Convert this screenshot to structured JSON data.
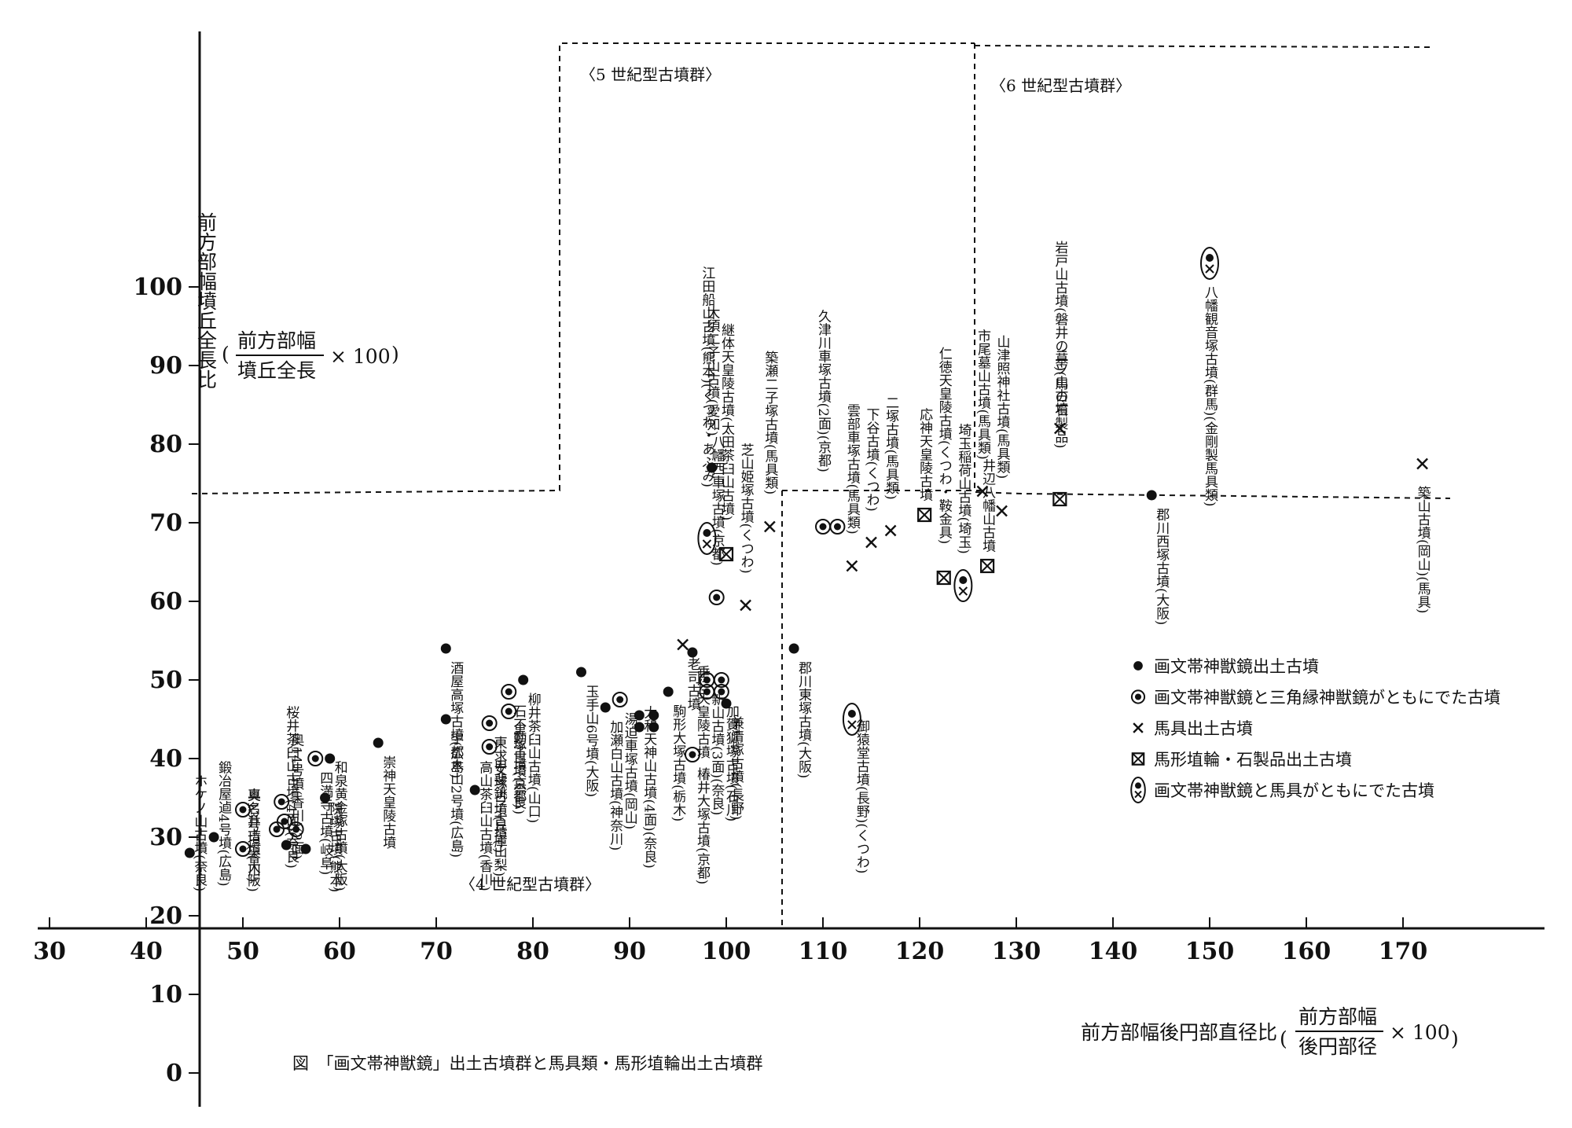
{
  "chart_data": {
    "type": "scatter",
    "title": "図　「画文帯神獣鏡」出土古墳群と馬具類・馬形埴輪出土古墳群",
    "ylabel": "前方部幅墳丘全長比",
    "ylabel_formula": {
      "numerator": "前方部幅",
      "denominator": "墳丘全長",
      "multiplier": "× 100"
    },
    "xlabel": "前方部幅後円部直径比",
    "xlabel_formula": {
      "numerator": "前方部幅",
      "denominator": "後円部径",
      "multiplier": "× 100"
    },
    "xlim": [
      30,
      170
    ],
    "ylim": [
      0,
      100
    ],
    "x_ticks": [
      30,
      40,
      50,
      60,
      70,
      80,
      90,
      100,
      110,
      120,
      130,
      140,
      150,
      160,
      170
    ],
    "y_ticks": [
      0,
      10,
      20,
      30,
      40,
      50,
      60,
      70,
      80,
      90,
      100
    ],
    "grid": false,
    "groups": [
      {
        "label": "〈4 世紀型古墳群〉"
      },
      {
        "label": "〈5 世紀型古墳群〉"
      },
      {
        "label": "〈6 世紀型古墳群〉"
      }
    ],
    "legend": [
      {
        "symbol": "dot",
        "label": "画文帯神獣鏡出土古墳"
      },
      {
        "symbol": "ringdot",
        "label": "画文帯神獣鏡と三角縁神獣鏡がともにでた古墳"
      },
      {
        "symbol": "x",
        "label": "馬具出土古墳"
      },
      {
        "symbol": "boxx",
        "label": "馬形埴輪・石製品出土古墳"
      },
      {
        "symbol": "both",
        "label": "画文帯神獣鏡と馬具がともにでた古墳"
      }
    ],
    "points": [
      {
        "x": 44.5,
        "y": 28,
        "symbol": "dot",
        "label": "ホケノ山古墳(奈良)"
      },
      {
        "x": 47,
        "y": 30,
        "symbol": "dot",
        "label": "鍛冶屋逌4号墳(広島)"
      },
      {
        "x": 50,
        "y": 33.5,
        "symbol": "ringdot",
        "label": "真名井古墳(大阪)"
      },
      {
        "x": 50,
        "y": 28.5,
        "symbol": "ringdot",
        "label": "奥13号墳(香川)"
      },
      {
        "x": 54,
        "y": 34.5,
        "symbol": "ringdot",
        "label": "桜井茶臼山古墳(4面)(奈良)"
      },
      {
        "x": 54.3,
        "y": 32,
        "symbol": "ringdot",
        "label": ""
      },
      {
        "x": 53.5,
        "y": 31,
        "symbol": "ringdot",
        "label": ""
      },
      {
        "x": 54.5,
        "y": 29,
        "symbol": "dot",
        "label": "奥14号墳(香川)(2面)"
      },
      {
        "x": 55.5,
        "y": 31,
        "symbol": "ringdot",
        "label": ""
      },
      {
        "x": 56.5,
        "y": 28.5,
        "symbol": "dot",
        "label": ""
      },
      {
        "x": 57.5,
        "y": 40,
        "symbol": "ringdot",
        "label": "四満寺古墳(岐阜)"
      },
      {
        "x": 58.5,
        "y": 35,
        "symbol": "dot",
        "label": "院塚古墳(熊本)"
      },
      {
        "x": 59,
        "y": 40,
        "symbol": "dot",
        "label": "和泉黄金塚古墳(大阪)"
      },
      {
        "x": 64,
        "y": 42,
        "symbol": "dot",
        "label": "崇神天皇陵古墳"
      },
      {
        "x": 71,
        "y": 54,
        "symbol": "dot",
        "label": "酒屋高塚古墳(広島)"
      },
      {
        "x": 71,
        "y": 45,
        "symbol": "dot",
        "label": "宇都木山2号墳(広島)"
      },
      {
        "x": 74,
        "y": 36,
        "symbol": "dot",
        "label": "高山茶臼山古墳(香川)"
      },
      {
        "x": 75.5,
        "y": 41.5,
        "symbol": "ringdot",
        "label": "甲斐銚子古墳(山梨)"
      },
      {
        "x": 75.5,
        "y": 44.5,
        "symbol": "ringdot",
        "label": "東求女塚古墳(兵庫)"
      },
      {
        "x": 77.5,
        "y": 46,
        "symbol": "ringdot",
        "label": "黒塚古墳(奈良)"
      },
      {
        "x": 77.5,
        "y": 48.5,
        "symbol": "ringdot",
        "label": "石不動古墳(京都)"
      },
      {
        "x": 79,
        "y": 50,
        "symbol": "dot",
        "label": "柳井茶臼山古墳(山口)"
      },
      {
        "x": 85,
        "y": 51,
        "symbol": "dot",
        "label": "玉手山6号墳(大阪)"
      },
      {
        "x": 87.5,
        "y": 46.5,
        "symbol": "dot",
        "label": "加瀬白山古墳(神奈川)"
      },
      {
        "x": 89,
        "y": 47.5,
        "symbol": "ringdot",
        "label": "湯迫車塚古墳(岡山)"
      },
      {
        "x": 91,
        "y": 45.5,
        "symbol": "dot",
        "label": ""
      },
      {
        "x": 91,
        "y": 44,
        "symbol": "dot",
        "label": "大和天神山古墳(4面)(奈良)"
      },
      {
        "x": 92.5,
        "y": 45.5,
        "symbol": "dot",
        "label": ""
      },
      {
        "x": 92.5,
        "y": 44,
        "symbol": "dot",
        "label": ""
      },
      {
        "x": 94,
        "y": 48.5,
        "symbol": "dot",
        "label": "駒形大塚古墳(栃木)"
      },
      {
        "x": 95.5,
        "y": 54.5,
        "symbol": "x",
        "label": "老司古墳"
      },
      {
        "x": 96.5,
        "y": 53.5,
        "symbol": "dot",
        "label": "垂仁天皇陵古墳"
      },
      {
        "x": 96.5,
        "y": 40.5,
        "symbol": "ringdot",
        "label": "椿井大塚古墳(京都)"
      },
      {
        "x": 98,
        "y": 50,
        "symbol": "ringdot",
        "label": "新山古墳(3面)(奈良)"
      },
      {
        "x": 98,
        "y": 48.5,
        "symbol": "ringdot",
        "label": ""
      },
      {
        "x": 99.5,
        "y": 50,
        "symbol": "ringdot",
        "label": ""
      },
      {
        "x": 99.5,
        "y": 48.5,
        "symbol": "ringdot",
        "label": "加賀狐塚古墳(石川)"
      },
      {
        "x": 100,
        "y": 47,
        "symbol": "dot",
        "label": "兼清塚古墳(長野)"
      },
      {
        "x": 98.5,
        "y": 77,
        "symbol": "dot",
        "label": "大須二子山古墳(愛知)"
      },
      {
        "x": 98,
        "y": 68,
        "symbol": "both",
        "label": "江田船山古墳(熊本)(くつわ・あぶみ)"
      },
      {
        "x": 100,
        "y": 66,
        "symbol": "boxx",
        "label": "継体天皇陵古墳(太田茶臼山古墳)"
      },
      {
        "x": 99,
        "y": 60.5,
        "symbol": "ringdot",
        "label": "八幡西車塚古墳(京都)"
      },
      {
        "x": 102,
        "y": 59.5,
        "symbol": "x",
        "label": "芝山姫塚古墳(くつわ)"
      },
      {
        "x": 104.5,
        "y": 69.5,
        "symbol": "x",
        "label": "築瀬二子塚古墳(馬具類)"
      },
      {
        "x": 107,
        "y": 54,
        "symbol": "dot",
        "label": "郡川東塚古墳(大阪)"
      },
      {
        "x": 110,
        "y": 69.5,
        "symbol": "ringdot",
        "label": "久津川車塚古墳(2面)(京都)"
      },
      {
        "x": 111.5,
        "y": 69.5,
        "symbol": "ringdot",
        "label": ""
      },
      {
        "x": 113,
        "y": 64.5,
        "symbol": "x",
        "label": "雲部車塚古墳(馬具類)"
      },
      {
        "x": 113,
        "y": 45,
        "symbol": "both",
        "label": "御猿堂古墳(長野)(くつわ)"
      },
      {
        "x": 115,
        "y": 67.5,
        "symbol": "x",
        "label": "下谷古墳(くつわ)"
      },
      {
        "x": 117,
        "y": 69,
        "symbol": "x",
        "label": "二塚古墳(馬具類)"
      },
      {
        "x": 120.5,
        "y": 71,
        "symbol": "boxx",
        "label": "応神天皇陵古墳"
      },
      {
        "x": 122.5,
        "y": 63,
        "symbol": "boxx",
        "label": "仁徳天皇陵古墳(くつわ・鞍金具)"
      },
      {
        "x": 124.5,
        "y": 62,
        "symbol": "both",
        "label": "埼玉稲荷山古墳(埼玉)"
      },
      {
        "x": 126.5,
        "y": 74,
        "symbol": "x",
        "label": "市尾墓山古墳(馬具類)"
      },
      {
        "x": 127,
        "y": 64.5,
        "symbol": "boxx",
        "label": "井辺八幡山古墳"
      },
      {
        "x": 128.5,
        "y": 71.5,
        "symbol": "x",
        "label": "山津照神社古墳(馬具類)"
      },
      {
        "x": 134.5,
        "y": 82,
        "symbol": "x",
        "label": "二ツ山古墳"
      },
      {
        "x": 134.5,
        "y": 73,
        "symbol": "boxx",
        "label": "岩戸山古墳(磐井の墓)(馬の石製品)"
      },
      {
        "x": 144,
        "y": 73.5,
        "symbol": "dot",
        "label": "郡川西塚古墳(大阪)"
      },
      {
        "x": 150,
        "y": 103,
        "symbol": "both",
        "label": "八幡観音塚古墳(群馬)(金剛製馬具類)"
      },
      {
        "x": 172,
        "y": 77.5,
        "symbol": "x",
        "label": "築山古墳(岡山)(馬具)"
      }
    ]
  },
  "caption": "図　「画文帯神獣鏡」出土古墳群と馬具類・馬形埴輪出土古墳群"
}
